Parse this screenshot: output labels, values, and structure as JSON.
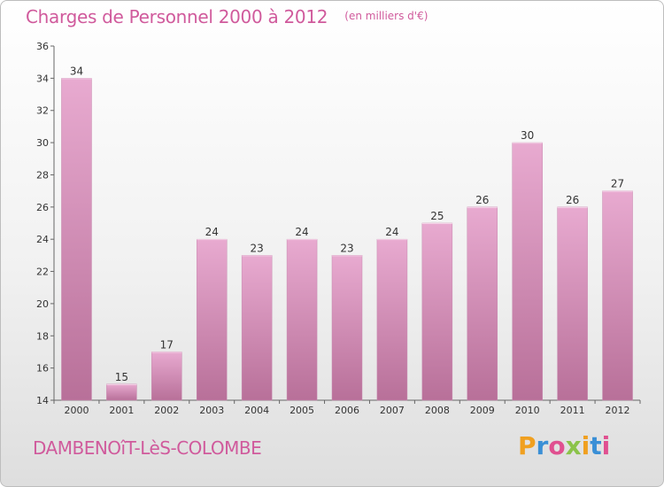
{
  "title": "Charges de Personnel 2000 à 2012",
  "unit": "(en milliers d'€)",
  "place": "DAMBENOîT-LèS-COLOMBE",
  "brand": {
    "letters": [
      "P",
      "r",
      "o",
      "x",
      "i",
      "t",
      "i"
    ],
    "colors": [
      "#f0a020",
      "#3a8fd6",
      "#e05090",
      "#8bc34a",
      "#f0a020",
      "#3a8fd6",
      "#e05090"
    ]
  },
  "colors": {
    "bar_top": "#e8aad0",
    "bar_bottom": "#b87099",
    "title": "#d05a9c"
  },
  "chart_data": {
    "type": "bar",
    "categories": [
      "2000",
      "2001",
      "2002",
      "2003",
      "2004",
      "2005",
      "2006",
      "2007",
      "2008",
      "2009",
      "2010",
      "2011",
      "2012"
    ],
    "values": [
      34,
      15,
      17,
      24,
      23,
      24,
      23,
      24,
      25,
      26,
      30,
      26,
      27
    ],
    "title": "Charges de Personnel 2000 à 2012",
    "ylim": [
      14,
      36
    ],
    "yticks": [
      14,
      16,
      18,
      20,
      22,
      24,
      26,
      28,
      30,
      32,
      34,
      36
    ],
    "grid": false
  }
}
